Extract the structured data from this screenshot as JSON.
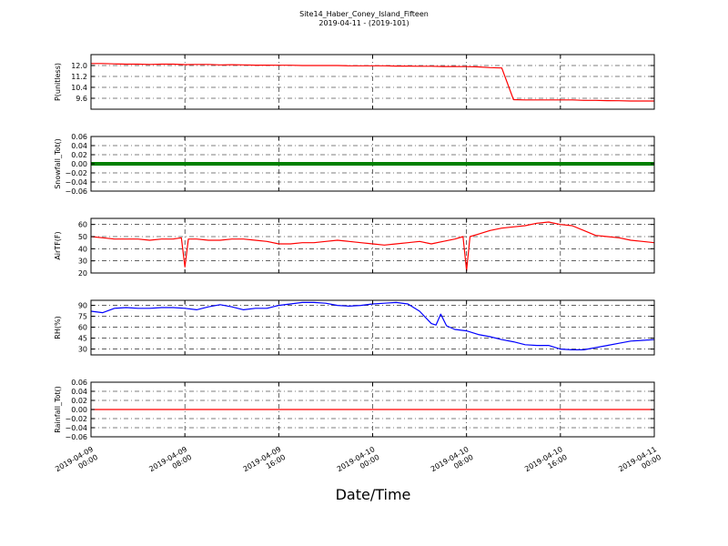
{
  "figure": {
    "title_line1": "Site14_Haber_Coney_Island_Fifteen",
    "title_line2": "2019-04-11 - (2019-101)",
    "xlabel": "Date/Time"
  },
  "chart_data": [
    {
      "type": "line",
      "ylabel": "P(unitless)",
      "color": "#ff0000",
      "ylim": [
        8.8,
        12.8
      ],
      "yticks": [
        9.6,
        10.4,
        11.2,
        12.0
      ],
      "ytick_labels": [
        "9.6",
        "10.4",
        "11.2",
        "12.0"
      ],
      "grid": true,
      "x": [
        0,
        1,
        2,
        3,
        4,
        5,
        6,
        7,
        8,
        9,
        10,
        11,
        12,
        13,
        14,
        15,
        16,
        17,
        18,
        19,
        20,
        21,
        22,
        23,
        24,
        25,
        26,
        27,
        28,
        29,
        30,
        31,
        32,
        33,
        34,
        35,
        36,
        37,
        38,
        39,
        40,
        41,
        42,
        43,
        44,
        45,
        46,
        47,
        48
      ],
      "y": [
        12.15,
        12.15,
        12.12,
        12.1,
        12.1,
        12.08,
        12.1,
        12.1,
        12.07,
        12.08,
        12.08,
        12.05,
        12.06,
        12.05,
        12.03,
        12.03,
        12.02,
        12.02,
        12.0,
        12.0,
        12.0,
        12.0,
        11.98,
        11.98,
        11.98,
        11.98,
        11.96,
        11.96,
        11.95,
        11.95,
        11.93,
        11.93,
        11.92,
        11.9,
        11.85,
        11.82,
        9.5,
        9.48,
        9.48,
        9.48,
        9.48,
        9.48,
        9.45,
        9.45,
        9.43,
        9.42,
        9.4,
        9.4,
        9.4
      ]
    },
    {
      "type": "scatter",
      "ylabel": "Snowfall_Tot()",
      "color": "#008000",
      "ylim": [
        -0.06,
        0.06
      ],
      "yticks": [
        -0.06,
        -0.04,
        -0.02,
        0.0,
        0.02,
        0.04,
        0.06
      ],
      "ytick_labels": [
        "−0.06",
        "−0.04",
        "−0.02",
        "0.00",
        "0.02",
        "0.04",
        "0.06"
      ],
      "grid": true,
      "x": [
        0,
        48
      ],
      "y": [
        0,
        0
      ]
    },
    {
      "type": "line",
      "ylabel": "AirTF(F)",
      "color": "#ff0000",
      "ylim": [
        20,
        65
      ],
      "yticks": [
        20,
        30,
        40,
        50,
        60
      ],
      "ytick_labels": [
        "20",
        "30",
        "40",
        "50",
        "60"
      ],
      "grid": true,
      "x": [
        0,
        1,
        2,
        3,
        4,
        5,
        6,
        7,
        7.7,
        8,
        8.3,
        9,
        10,
        11,
        12,
        13,
        14,
        15,
        16,
        17,
        18,
        19,
        20,
        21,
        22,
        23,
        24,
        25,
        26,
        27,
        28,
        29,
        30,
        31,
        31.7,
        32,
        32.3,
        33,
        34,
        35,
        36,
        37,
        38,
        39,
        40,
        41,
        42,
        43,
        44,
        45,
        46,
        47,
        48
      ],
      "y": [
        50,
        49,
        48,
        48,
        48,
        47,
        48,
        48,
        49,
        25,
        48,
        48,
        47,
        47,
        48,
        48,
        47,
        46,
        44,
        44,
        45,
        45,
        46,
        47,
        46,
        45,
        44,
        43,
        44,
        45,
        46,
        44,
        46,
        48,
        50,
        22,
        50,
        52,
        55,
        57,
        58,
        59,
        61,
        62,
        60,
        59,
        55,
        51,
        50,
        49,
        47,
        46,
        45
      ]
    },
    {
      "type": "line",
      "ylabel": "RH(%)",
      "color": "#0000ff",
      "ylim": [
        22,
        97
      ],
      "yticks": [
        30,
        45,
        60,
        75,
        90
      ],
      "ytick_labels": [
        "30",
        "45",
        "60",
        "75",
        "90"
      ],
      "grid": true,
      "x": [
        0,
        1,
        2,
        3,
        4,
        5,
        6,
        7,
        8,
        9,
        10,
        11,
        12,
        13,
        14,
        15,
        16,
        17,
        18,
        19,
        20,
        21,
        22,
        23,
        24,
        25,
        26,
        27,
        28,
        29,
        29.4,
        29.8,
        30.3,
        31,
        32,
        33,
        34,
        35,
        36,
        37,
        38,
        39,
        40,
        41,
        42,
        43,
        44,
        45,
        46,
        47,
        48
      ],
      "y": [
        82,
        80,
        86,
        87,
        86,
        86,
        87,
        87,
        86,
        84,
        88,
        91,
        88,
        84,
        86,
        86,
        90,
        92,
        94,
        94,
        93,
        90,
        89,
        90,
        92,
        93,
        94,
        92,
        82,
        65,
        63,
        78,
        62,
        57,
        55,
        50,
        47,
        43,
        40,
        36,
        35,
        35,
        30,
        29,
        29,
        32,
        35,
        38,
        41,
        42,
        43
      ]
    },
    {
      "type": "line",
      "ylabel": "Rainfall_Tot()",
      "color": "#ff0000",
      "ylim": [
        -0.06,
        0.06
      ],
      "yticks": [
        -0.06,
        -0.04,
        -0.02,
        0.0,
        0.02,
        0.04,
        0.06
      ],
      "ytick_labels": [
        "−0.06",
        "−0.04",
        "−0.02",
        "0.00",
        "0.02",
        "0.04",
        "0.06"
      ],
      "grid": true,
      "x": [
        0,
        48
      ],
      "y": [
        0,
        0
      ]
    }
  ],
  "x_axis": {
    "xlim": [
      0,
      48
    ],
    "ticks": [
      0,
      8,
      16,
      24,
      32,
      40,
      48
    ],
    "tick_labels": [
      [
        "2019-04-09",
        "00:00"
      ],
      [
        "2019-04-09",
        "08:00"
      ],
      [
        "2019-04-09",
        "16:00"
      ],
      [
        "2019-04-10",
        "00:00"
      ],
      [
        "2019-04-10",
        "08:00"
      ],
      [
        "2019-04-10",
        "16:00"
      ],
      [
        "2019-04-11",
        "00:00"
      ]
    ]
  }
}
